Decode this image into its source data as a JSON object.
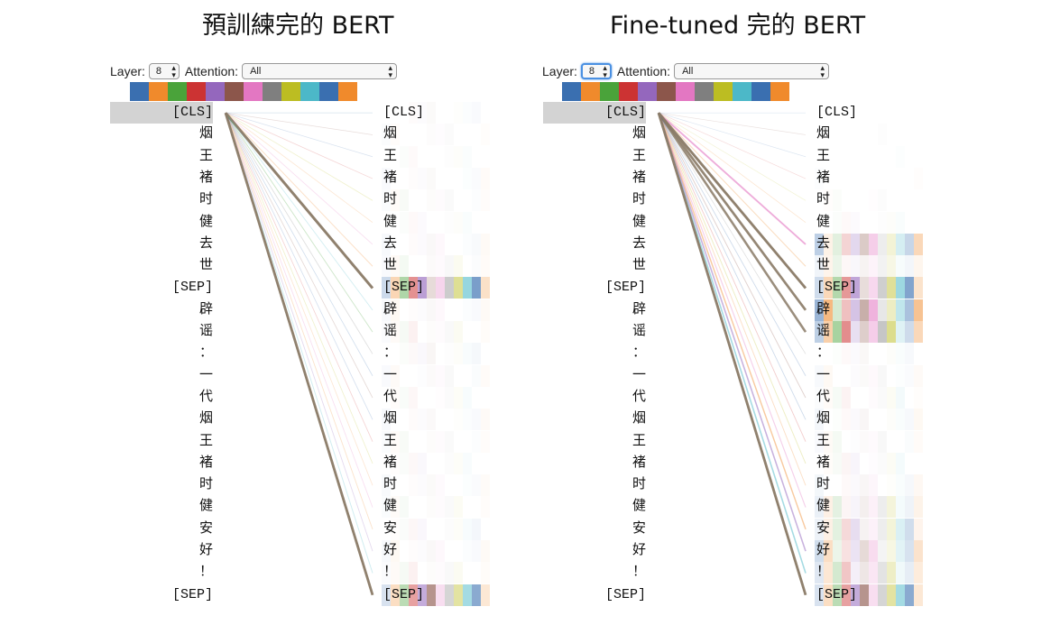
{
  "colors": {
    "heads": [
      "#3a6fb0",
      "#f08a2c",
      "#4aa33a",
      "#cc3333",
      "#9467bd",
      "#8c564b",
      "#e377c2",
      "#7f7f7f",
      "#bcbd22",
      "#4cb8c8",
      "#3a6fb0",
      "#f08a2c"
    ],
    "selected_bg": "#d3d3d3",
    "focus_ring": "#4a90e2"
  },
  "tokens": [
    "[CLS]",
    "烟",
    "王",
    "褚",
    "时",
    "健",
    "去",
    "世",
    "[SEP]",
    "辟",
    "谣",
    "：",
    "一",
    "代",
    "烟",
    "王",
    "褚",
    "时",
    "健",
    "安",
    "好",
    "！",
    "[SEP]"
  ],
  "panels": [
    {
      "title": "預訓練完的 BERT",
      "layer_label": "Layer:",
      "layer_value": "8",
      "layer_focused": false,
      "attention_label": "Attention:",
      "attention_value": "All",
      "selected_token": "[CLS]",
      "attention_weights": [
        0.06,
        0.05,
        0.05,
        0.06,
        0.07,
        0.06,
        0.09,
        0.12,
        0.85,
        0.1,
        0.12,
        0.1,
        0.08,
        0.08,
        0.07,
        0.07,
        0.08,
        0.07,
        0.09,
        0.1,
        0.1,
        0.12,
        0.8
      ],
      "strong_line_color": "#8a7a66"
    },
    {
      "title": "Fine-tuned 完的 BERT",
      "layer_label": "Layer:",
      "layer_value": "8",
      "layer_focused": true,
      "attention_label": "Attention:",
      "attention_value": "All",
      "selected_token": "[CLS]",
      "attention_weights": [
        0.02,
        0.03,
        0.03,
        0.03,
        0.04,
        0.06,
        0.45,
        0.15,
        0.8,
        0.75,
        0.7,
        0.08,
        0.1,
        0.12,
        0.1,
        0.1,
        0.12,
        0.12,
        0.2,
        0.3,
        0.35,
        0.35,
        0.8
      ],
      "strong_line_color": "#8a7a66"
    }
  ]
}
